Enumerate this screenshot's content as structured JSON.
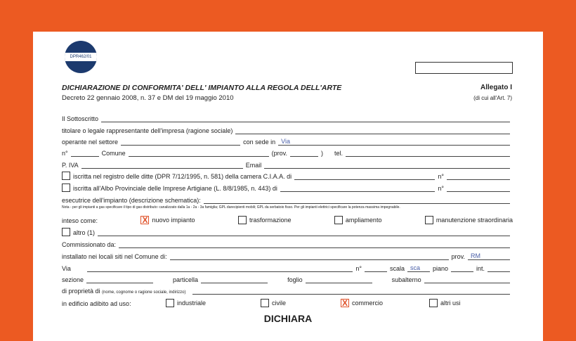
{
  "logo": {
    "text": "DPR462/01",
    "color": "#1c3a6e"
  },
  "colors": {
    "background": "#ec5a22",
    "check": "#e0522a"
  },
  "header": {
    "title": "DICHIARAZIONE DI CONFORMITA' DELL' IMPIANTO ALLA REGOLA DELL'ARTE",
    "subtitle": "Decreto 22 gennaio 2008, n. 37 e DM del 19 maggio 2010",
    "allegato": "Allegato I",
    "di_cui": "(di cui all'Art. 7)"
  },
  "form": {
    "sottoscritto": "Il Sottoscritto",
    "titolare": "titolare o legale rappresentante dell'impresa (ragione sociale)",
    "settore": "operante nel settore",
    "sede": "con sede in",
    "sede_value": "Via",
    "n": "n°",
    "comune": "Comune",
    "prov": "(prov.",
    "prov_close": ")",
    "tel": "tel.",
    "piva": "P. IVA",
    "email": "Email",
    "registro": "iscritta nel registro delle ditte (DPR 7/12/1995, n. 581) della camera C.I.A.A. di",
    "albo": "iscritta all'Albo Provinciale delle Imprese Artigiane (L. 8/8/1985, n. 443) di",
    "esecutrice": "esecutrice dell'impianto (descrizione schematica):",
    "note": "Nota -  per gli impianti a gas specificare il tipo di gas distributo: canalizzato dalla 1a - 2a - 3a famiglia; GPL darecipienti mobili; GPL da serbatoio fisso. Per gli impianti elettrici specificare la potenza massima impegnabile.",
    "inteso": "inteso come:",
    "options": [
      {
        "label": "nuovo impianto",
        "checked": true
      },
      {
        "label": "trasformazione",
        "checked": false
      },
      {
        "label": "ampliamento",
        "checked": false
      },
      {
        "label": "manutenzione straordinaria",
        "checked": false
      }
    ],
    "altro": "altro (1)",
    "commissionato": "Commissionato da:",
    "installato": "installato nei locali siti nel Comune di:",
    "prov2": "prov.",
    "prov2_value": "RM",
    "via": "Via",
    "scala": "scala",
    "scala_value": "sca",
    "piano": "piano",
    "int": "int.",
    "sezione": "sezione",
    "particella": "particella",
    "foglio": "foglio",
    "subalterno": "subalterno",
    "proprieta": "di proprietà di",
    "proprieta_hint": "(nome, cognome o ragione sociale, indirizzo)",
    "edificio": "in edificio adibito ad uso:",
    "usi": [
      {
        "label": "industriale",
        "checked": false
      },
      {
        "label": "civile",
        "checked": false
      },
      {
        "label": "commercio",
        "checked": true
      },
      {
        "label": "altri usi",
        "checked": false
      }
    ],
    "dichiara": "DICHIARA"
  }
}
